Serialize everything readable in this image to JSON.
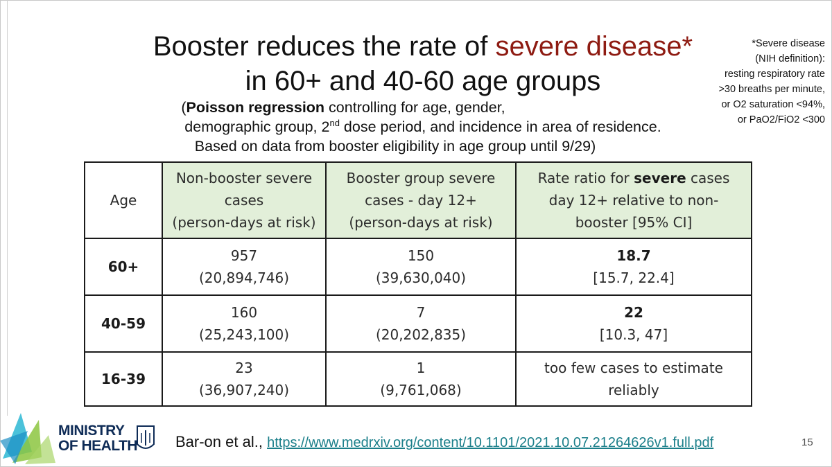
{
  "slide": {
    "title_line1_pre": "Booster reduces the rate of ",
    "title_line1_accent": "severe disease*",
    "title_line2": "in 60+ and 40-60 age groups",
    "subtitle_open": "(",
    "subtitle_bold": "Poisson regression",
    "subtitle_rest": " controlling for age, gender,",
    "subtitle_line2_pre": "demographic group,  2",
    "subtitle_line2_sup": "nd",
    "subtitle_line2_post": " dose period, and incidence in area of residence.",
    "subtitle_line3": "Based on data from booster eligibility in age group until 9/29)",
    "page_number": "15"
  },
  "note": {
    "lines": [
      "*Severe disease",
      "(NIH definition):",
      "resting respiratory rate",
      ">30 breaths per minute,",
      "or O2 saturation <94%,",
      "or PaO2/FiO2 <300"
    ]
  },
  "table": {
    "headers": {
      "age": "Age",
      "non_booster": [
        "Non-booster severe",
        "cases",
        "(person-days at risk)"
      ],
      "booster": [
        "Booster group severe",
        "cases - day 12+",
        "(person-days at risk)"
      ],
      "ratio_pre": "Rate ratio for ",
      "ratio_bold": "severe",
      "ratio_post": " cases",
      "ratio_line2": "day 12+ relative to non-",
      "ratio_line3": "booster [95% CI]"
    },
    "rows": [
      {
        "age": "60+",
        "non_booster": "957",
        "non_booster_days": "(20,894,746)",
        "booster": "150",
        "booster_days": "(39,630,040)",
        "ratio": "18.7",
        "ci": "[15.7, 22.4]"
      },
      {
        "age": "40-59",
        "non_booster": "160",
        "non_booster_days": "(25,243,100)",
        "booster": "7",
        "booster_days": "(20,202,835)",
        "ratio": "22",
        "ci": "[10.3, 47]"
      },
      {
        "age": "16-39",
        "non_booster": "23",
        "non_booster_days": "(36,907,240)",
        "booster": "1",
        "booster_days": "(9,761,068)",
        "ratio_text_line1": "too few cases to estimate",
        "ratio_text_line2": "reliably"
      }
    ]
  },
  "footer": {
    "logo_line1": "MINISTRY",
    "logo_line2": "OF HEALTH",
    "citation_text": "Bar-on et al.,",
    "citation_link": "https://www.medrxiv.org/content/10.1101/2021.10.07.21264626v1.full.pdf",
    "colors": {
      "logo_navy": "#0e2b56",
      "logo_cyan": "#2bb7d4",
      "logo_green": "#8cc63f",
      "link": "#1b7f8a",
      "accent": "#8e1b12",
      "header_fill": "#e2efd9"
    }
  }
}
